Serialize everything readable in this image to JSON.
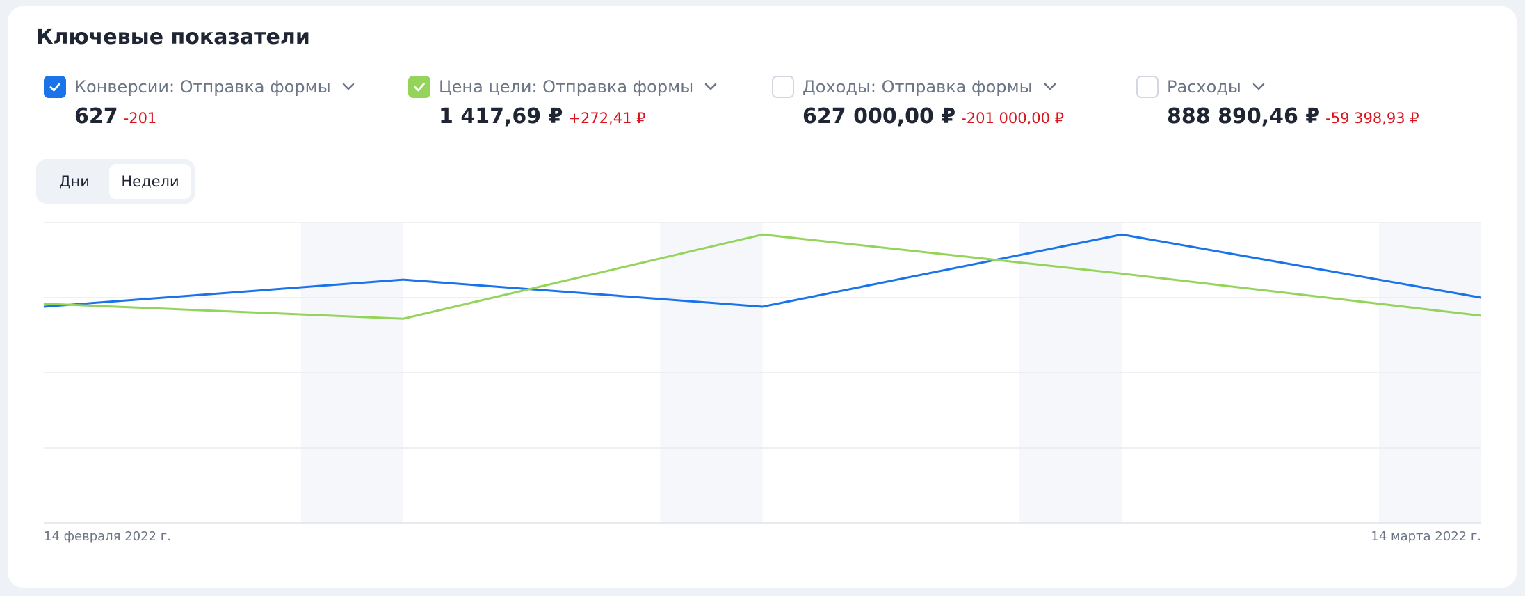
{
  "title": "Ключевые показатели",
  "metrics": [
    {
      "label": "Конверсии: Отправка формы",
      "value": "627",
      "delta": "-201",
      "checked": true,
      "color": "#1a73e8",
      "icon": "chevron-down-icon"
    },
    {
      "label": "Цена цели: Отправка формы",
      "value": "1 417,69 ₽",
      "delta": "+272,41 ₽",
      "checked": true,
      "color": "#94d45b",
      "icon": "chevron-down-icon"
    },
    {
      "label": "Доходы: Отправка формы",
      "value": "627 000,00 ₽",
      "delta": "-201 000,00 ₽",
      "checked": false,
      "icon": "chevron-down-icon"
    },
    {
      "label": "Расходы",
      "value": "888 890,46 ₽",
      "delta": "-59 398,93 ₽",
      "checked": false,
      "icon": "chevron-down-icon"
    }
  ],
  "period_toggle": {
    "days": "Дни",
    "weeks": "Недели",
    "selected": "weeks"
  },
  "chart_data": {
    "type": "line",
    "x_start_label": "14 февраля 2022 г.",
    "x_end_label": "14 марта 2022 г.",
    "x": [
      0,
      1,
      2,
      3,
      4
    ],
    "series": [
      {
        "name": "Конверсии: Отправка формы",
        "color": "#1a73e8",
        "values": [
          0.72,
          0.81,
          0.72,
          0.96,
          0.75
        ]
      },
      {
        "name": "Цена цели: Отправка формы",
        "color": "#94d45b",
        "values": [
          0.73,
          0.68,
          0.96,
          0.83,
          0.69
        ]
      }
    ],
    "ylim": [
      0,
      1
    ],
    "grid": true,
    "weekend_bands": true
  }
}
